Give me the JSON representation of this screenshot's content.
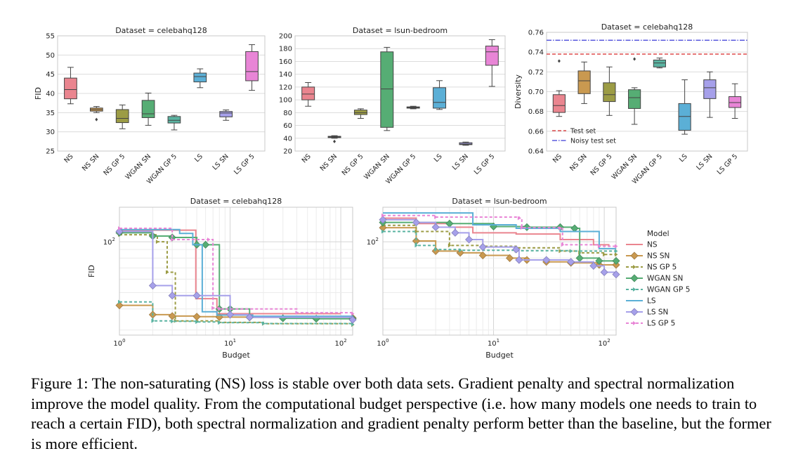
{
  "caption": "Figure 1: The non-saturating (NS) loss is stable over both data sets. Gradient penalty and spectral normalization improve the model quality. From the computational budget perspective (i.e. how many models one needs to train to reach a certain FID), both spectral normalization and gradient penalty perform better than the baseline, but the former is more efficient.",
  "colors": {
    "NS": "#ea858f",
    "NS SN": "#c99950",
    "NS GP 5": "#9c9c45",
    "WGAN SN": "#56ad74",
    "WGAN GP 5": "#5ab3a1",
    "LS": "#5bafd6",
    "LS SN": "#a6a0ea",
    "LS GP 5": "#e885d6",
    "test_line": "#d62728",
    "noisy_test_line": "#3a3ad6"
  },
  "chart_data": [
    {
      "type": "box",
      "title": "Dataset = celebahq128",
      "ylabel": "FID",
      "xlabel": "",
      "ylim": [
        25,
        55
      ],
      "yticks": [
        "25",
        "30",
        "35",
        "40",
        "45",
        "50",
        "55"
      ],
      "grid": true,
      "categories": [
        "NS",
        "NS SN",
        "NS GP 5",
        "WGAN SN",
        "WGAN GP 5",
        "LS",
        "LS SN",
        "LS GP 5"
      ],
      "boxes": [
        {
          "whislo": 37.3,
          "q1": 38.6,
          "med": 41.0,
          "q3": 44.0,
          "whishi": 46.8,
          "fliers": []
        },
        {
          "whislo": 35.0,
          "q1": 35.4,
          "med": 35.8,
          "q3": 36.2,
          "whishi": 36.6,
          "fliers": [
            33.2
          ]
        },
        {
          "whislo": 30.8,
          "q1": 32.4,
          "med": 33.5,
          "q3": 35.8,
          "whishi": 37.0,
          "fliers": []
        },
        {
          "whislo": 31.7,
          "q1": 33.7,
          "med": 34.7,
          "q3": 38.2,
          "whishi": 40.1,
          "fliers": []
        },
        {
          "whislo": 30.5,
          "q1": 32.3,
          "med": 33.0,
          "q3": 34.0,
          "whishi": 34.3,
          "fliers": []
        },
        {
          "whislo": 41.5,
          "q1": 43.0,
          "med": 44.4,
          "q3": 45.3,
          "whishi": 46.4,
          "fliers": []
        },
        {
          "whislo": 33.0,
          "q1": 33.9,
          "med": 34.9,
          "q3": 35.3,
          "whishi": 35.7,
          "fliers": []
        },
        {
          "whislo": 40.8,
          "q1": 43.3,
          "med": 45.7,
          "q3": 50.9,
          "whishi": 52.7,
          "fliers": []
        }
      ]
    },
    {
      "type": "box",
      "title": "Dataset = lsun-bedroom",
      "ylabel": "",
      "xlabel": "",
      "ylim": [
        20,
        200
      ],
      "yticks": [
        "20",
        "40",
        "60",
        "80",
        "100",
        "120",
        "140",
        "160",
        "180",
        "200"
      ],
      "grid": true,
      "categories": [
        "NS",
        "NS SN",
        "NS GP 5",
        "WGAN SN",
        "WGAN GP 5",
        "LS",
        "LS SN",
        "LS GP 5"
      ],
      "boxes": [
        {
          "whislo": 90,
          "q1": 100,
          "med": 109,
          "q3": 120,
          "whishi": 127,
          "fliers": []
        },
        {
          "whislo": 40,
          "q1": 41,
          "med": 42,
          "q3": 43,
          "whishi": 44,
          "fliers": [
            35
          ]
        },
        {
          "whislo": 71,
          "q1": 77,
          "med": 80,
          "q3": 84,
          "whishi": 86,
          "fliers": []
        },
        {
          "whislo": 52,
          "q1": 57,
          "med": 117,
          "q3": 175,
          "whishi": 182,
          "fliers": []
        },
        {
          "whislo": 86,
          "q1": 87,
          "med": 88,
          "q3": 89,
          "whishi": 90,
          "fliers": []
        },
        {
          "whislo": 85,
          "q1": 87,
          "med": 96,
          "q3": 119,
          "whishi": 130,
          "fliers": []
        },
        {
          "whislo": 29,
          "q1": 30,
          "med": 31,
          "q3": 33,
          "whishi": 34,
          "fliers": []
        },
        {
          "whislo": 121,
          "q1": 154,
          "med": 175,
          "q3": 184,
          "whishi": 194,
          "fliers": []
        }
      ]
    },
    {
      "type": "box",
      "title": "Dataset = celebahq128",
      "ylabel": "Diversity",
      "xlabel": "",
      "ylim": [
        0.64,
        0.76
      ],
      "yticks": [
        "0.64",
        "0.66",
        "0.68",
        "0.70",
        "0.72",
        "0.74",
        "0.76"
      ],
      "grid": true,
      "categories": [
        "NS",
        "NS SN",
        "NS GP 5",
        "WGAN SN",
        "WGAN GP 5",
        "LS",
        "LS SN",
        "LS GP 5"
      ],
      "boxes": [
        {
          "whislo": 0.675,
          "q1": 0.679,
          "med": 0.686,
          "q3": 0.697,
          "whishi": 0.701,
          "fliers": [
            0.731
          ]
        },
        {
          "whislo": 0.688,
          "q1": 0.698,
          "med": 0.711,
          "q3": 0.721,
          "whishi": 0.73,
          "fliers": []
        },
        {
          "whislo": 0.676,
          "q1": 0.69,
          "med": 0.697,
          "q3": 0.709,
          "whishi": 0.725,
          "fliers": []
        },
        {
          "whislo": 0.667,
          "q1": 0.683,
          "med": 0.694,
          "q3": 0.702,
          "whishi": 0.704,
          "fliers": [
            0.733
          ]
        },
        {
          "whislo": 0.724,
          "q1": 0.725,
          "med": 0.729,
          "q3": 0.732,
          "whishi": 0.734,
          "fliers": []
        },
        {
          "whislo": 0.657,
          "q1": 0.661,
          "med": 0.675,
          "q3": 0.688,
          "whishi": 0.712,
          "fliers": []
        },
        {
          "whislo": 0.674,
          "q1": 0.693,
          "med": 0.704,
          "q3": 0.712,
          "whishi": 0.72,
          "fliers": []
        },
        {
          "whislo": 0.673,
          "q1": 0.684,
          "med": 0.689,
          "q3": 0.695,
          "whishi": 0.708,
          "fliers": []
        }
      ],
      "hlines": [
        {
          "name": "Test set",
          "value": 0.738,
          "style": "dashed",
          "color_key": "test_line"
        },
        {
          "name": "Noisy test set",
          "value": 0.752,
          "style": "dashdot",
          "color_key": "noisy_test_line"
        }
      ],
      "legend_position": "lower-left"
    },
    {
      "type": "line",
      "title": "Dataset = celebahq128",
      "xlabel": "Budget",
      "ylabel": "FID",
      "xscale": "log",
      "yscale": "log",
      "xlim": [
        1,
        128
      ],
      "ylim": [
        28,
        160
      ],
      "xticks": [
        "10^0",
        "10^1",
        "10^2"
      ],
      "yticks": [
        "10^2"
      ],
      "grid": true,
      "series": [
        {
          "name": "NS",
          "x": [
            1,
            4.4,
            4.9,
            7.6,
            100
          ],
          "y": [
            117,
            117,
            46,
            37.5,
            37.5
          ]
        },
        {
          "name": "NS SN",
          "x": [
            1,
            2,
            3,
            5,
            8,
            15,
            128
          ],
          "y": [
            42,
            37,
            36.3,
            36,
            35.8,
            35.7,
            35.4
          ]
        },
        {
          "name": "NS GP 5",
          "x": [
            1,
            2.2,
            2.7,
            3.2,
            8,
            20,
            128
          ],
          "y": [
            110,
            100,
            66,
            34,
            33.3,
            32.7,
            32.2
          ]
        },
        {
          "name": "WGAN SN",
          "x": [
            1,
            2,
            3,
            5,
            6,
            8,
            10,
            15,
            30,
            60,
            128
          ],
          "y": [
            113,
            108,
            106,
            96,
            96,
            40,
            40,
            35.7,
            35.2,
            35,
            35
          ]
        },
        {
          "name": "WGAN GP 5",
          "x": [
            1,
            2,
            3,
            5,
            8,
            20,
            128
          ],
          "y": [
            44,
            34,
            33.8,
            33.5,
            33.2,
            32.8,
            32.4
          ]
        },
        {
          "name": "LS",
          "x": [
            1,
            3.5,
            4.6,
            5.6,
            7.6,
            16,
            128
          ],
          "y": [
            118,
            112,
            96,
            38.5,
            36.8,
            36.2,
            35.3
          ]
        },
        {
          "name": "LS SN",
          "x": [
            1,
            2,
            3,
            5,
            10,
            15,
            128
          ],
          "y": [
            115,
            55,
            48,
            48,
            37,
            35.7,
            34.5
          ]
        },
        {
          "name": "LS GP 5",
          "x": [
            1,
            3,
            6.4,
            7,
            8,
            40,
            128
          ],
          "y": [
            120,
            103,
            103,
            40.5,
            40,
            38,
            37.5
          ]
        }
      ]
    },
    {
      "type": "line",
      "title": "Dataset = lsun-bedroom",
      "xlabel": "Budget",
      "ylabel": "",
      "xscale": "log",
      "yscale": "log",
      "xlim": [
        1,
        128
      ],
      "ylim": [
        28,
        160
      ],
      "xticks": [
        "10^0",
        "10^1",
        "10^2"
      ],
      "yticks": [
        "10^2"
      ],
      "grid": true,
      "series": [
        {
          "name": "NS",
          "x": [
            1,
            2,
            4,
            6.5,
            16,
            40,
            80,
            110
          ],
          "y": [
            138,
            128,
            122,
            113,
            111,
            103,
            96,
            93
          ]
        },
        {
          "name": "NS SN",
          "x": [
            1,
            2,
            3,
            5,
            8,
            14,
            20,
            30,
            50,
            90,
            128
          ],
          "y": [
            121,
            101,
            88,
            86,
            83,
            80,
            78,
            76,
            75,
            73,
            73
          ]
        },
        {
          "name": "NS GP 5",
          "x": [
            1,
            2,
            4,
            8,
            16,
            40,
            60,
            100,
            128
          ],
          "y": [
            125,
            115,
            95,
            94,
            92,
            88,
            86,
            84,
            84
          ]
        },
        {
          "name": "WGAN SN",
          "x": [
            1,
            4,
            10,
            20,
            40,
            54,
            60,
            90,
            128
          ],
          "y": [
            130,
            128,
            123,
            122,
            122,
            120,
            80,
            77,
            77
          ]
        },
        {
          "name": "WGAN GP 5",
          "x": [
            1,
            2,
            3,
            5,
            16,
            50,
            128
          ],
          "y": [
            115,
            95,
            90,
            89,
            88.5,
            88,
            88
          ]
        },
        {
          "name": "LS",
          "x": [
            1,
            6.5,
            16,
            40,
            90,
            128
          ],
          "y": [
            148,
            126,
            120,
            115,
            91,
            91
          ]
        },
        {
          "name": "LS SN",
          "x": [
            1,
            2,
            3,
            4.5,
            6,
            8,
            16,
            17,
            30,
            50,
            80,
            100,
            128
          ],
          "y": [
            135,
            130,
            122,
            113,
            103,
            93,
            90,
            78,
            78,
            76,
            72,
            66,
            64
          ]
        },
        {
          "name": "LS GP 5",
          "x": [
            1,
            3,
            17,
            18,
            40,
            42,
            90,
            128
          ],
          "y": [
            143,
            140,
            138,
            121,
            120,
            96,
            94,
            94
          ]
        }
      ],
      "legend_title": "Model",
      "legend_position": "outside-right"
    }
  ]
}
